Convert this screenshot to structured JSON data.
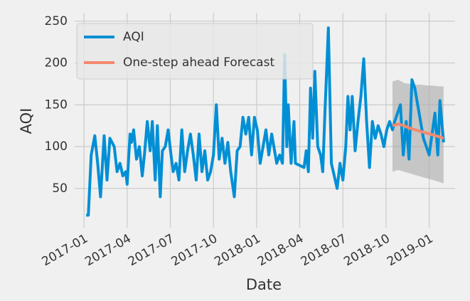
{
  "chart_data": {
    "type": "line",
    "x_label": "Date",
    "y_label": "AQI",
    "xlim": [
      -0.65,
      25.8
    ],
    "xticks": [
      {
        "value": 0,
        "label": "2017-01"
      },
      {
        "value": 3,
        "label": "2017-04"
      },
      {
        "value": 6,
        "label": "2017-07"
      },
      {
        "value": 9,
        "label": "2017-10"
      },
      {
        "value": 12,
        "label": "2018-01"
      },
      {
        "value": 15,
        "label": "2018-04"
      },
      {
        "value": 18,
        "label": "2018-07"
      },
      {
        "value": 21,
        "label": "2018-10"
      },
      {
        "value": 24,
        "label": "2019-01"
      }
    ],
    "ylim": [
      3,
      260
    ],
    "yticks": [
      50,
      100,
      150,
      200,
      250
    ],
    "grid": true,
    "legend": "upper left",
    "series": [
      {
        "name": "AQI",
        "color": "#008fd5",
        "x": [
          0.15,
          0.3,
          0.5,
          0.75,
          0.95,
          1.15,
          1.4,
          1.6,
          1.8,
          2.1,
          2.3,
          2.5,
          2.7,
          2.9,
          3.0,
          3.2,
          3.3,
          3.45,
          3.65,
          3.85,
          4.05,
          4.2,
          4.4,
          4.6,
          4.75,
          4.95,
          5.1,
          5.3,
          5.45,
          5.65,
          5.85,
          6.05,
          6.2,
          6.4,
          6.6,
          6.8,
          7.0,
          7.2,
          7.4,
          7.6,
          7.8,
          8.0,
          8.2,
          8.4,
          8.6,
          8.8,
          9.0,
          9.2,
          9.4,
          9.6,
          9.8,
          10.0,
          10.2,
          10.45,
          10.65,
          10.85,
          11.05,
          11.25,
          11.45,
          11.65,
          11.85,
          12.05,
          12.25,
          12.45,
          12.65,
          12.85,
          13.05,
          13.2,
          13.4,
          13.6,
          13.8,
          13.95,
          14.1,
          14.2,
          14.4,
          14.6,
          14.7,
          15.3,
          15.45,
          15.6,
          15.75,
          15.9,
          16.05,
          16.25,
          16.45,
          16.6,
          16.75,
          16.99,
          17.2,
          17.4,
          17.6,
          17.8,
          18.0,
          18.2,
          18.35,
          18.5,
          18.65,
          18.85,
          19.05,
          19.25,
          19.45,
          19.65,
          19.85,
          20.05,
          20.25,
          20.45,
          20.65,
          20.85,
          21.05,
          21.25,
          21.45,
          21.6,
          21.8,
          22.0,
          22.2,
          22.4,
          22.6,
          22.8,
          23.0,
          23.2,
          23.4,
          23.6,
          23.8,
          24.0,
          24.2,
          24.4,
          24.6,
          24.75,
          25.0
        ],
        "values": [
          18,
          18,
          90,
          113,
          80,
          40,
          113,
          60,
          110,
          100,
          70,
          80,
          65,
          70,
          55,
          115,
          105,
          120,
          85,
          100,
          65,
          90,
          130,
          95,
          130,
          60,
          125,
          40,
          95,
          100,
          120,
          90,
          70,
          80,
          60,
          120,
          70,
          95,
          115,
          90,
          60,
          115,
          70,
          95,
          60,
          70,
          90,
          150,
          85,
          110,
          80,
          105,
          70,
          40,
          95,
          100,
          135,
          115,
          135,
          90,
          135,
          120,
          80,
          100,
          120,
          90,
          115,
          100,
          80,
          90,
          80,
          210,
          100,
          150,
          80,
          130,
          80,
          75,
          95,
          70,
          170,
          110,
          190,
          100,
          90,
          70,
          140,
          242,
          80,
          65,
          50,
          80,
          60,
          100,
          160,
          120,
          160,
          95,
          130,
          160,
          205,
          130,
          75,
          130,
          110,
          125,
          115,
          100,
          120,
          130,
          120,
          130,
          140,
          150,
          90,
          130,
          85,
          180,
          170,
          150,
          130,
          110,
          100,
          90,
          115,
          140,
          90,
          155,
          105
        ]
      },
      {
        "name": "One-step ahead Forecast",
        "color": "#f3896f",
        "x": [
          21.45,
          21.85,
          22.25,
          22.65,
          23.05,
          23.45,
          23.85,
          24.25,
          24.65,
          25.0
        ],
        "values": [
          125,
          127,
          125,
          122,
          120,
          118,
          116,
          114,
          112,
          110
        ]
      }
    ],
    "confidence_band": {
      "color": "#aaaaaa",
      "x": [
        21.45,
        21.85,
        22.25,
        22.65,
        23.05,
        23.45,
        23.85,
        24.25,
        24.65,
        25.0
      ],
      "upper": [
        178,
        180,
        176,
        175,
        174,
        174,
        173,
        173,
        172,
        172
      ],
      "lower": [
        70,
        72,
        70,
        68,
        66,
        64,
        62,
        60,
        58,
        56
      ]
    }
  }
}
